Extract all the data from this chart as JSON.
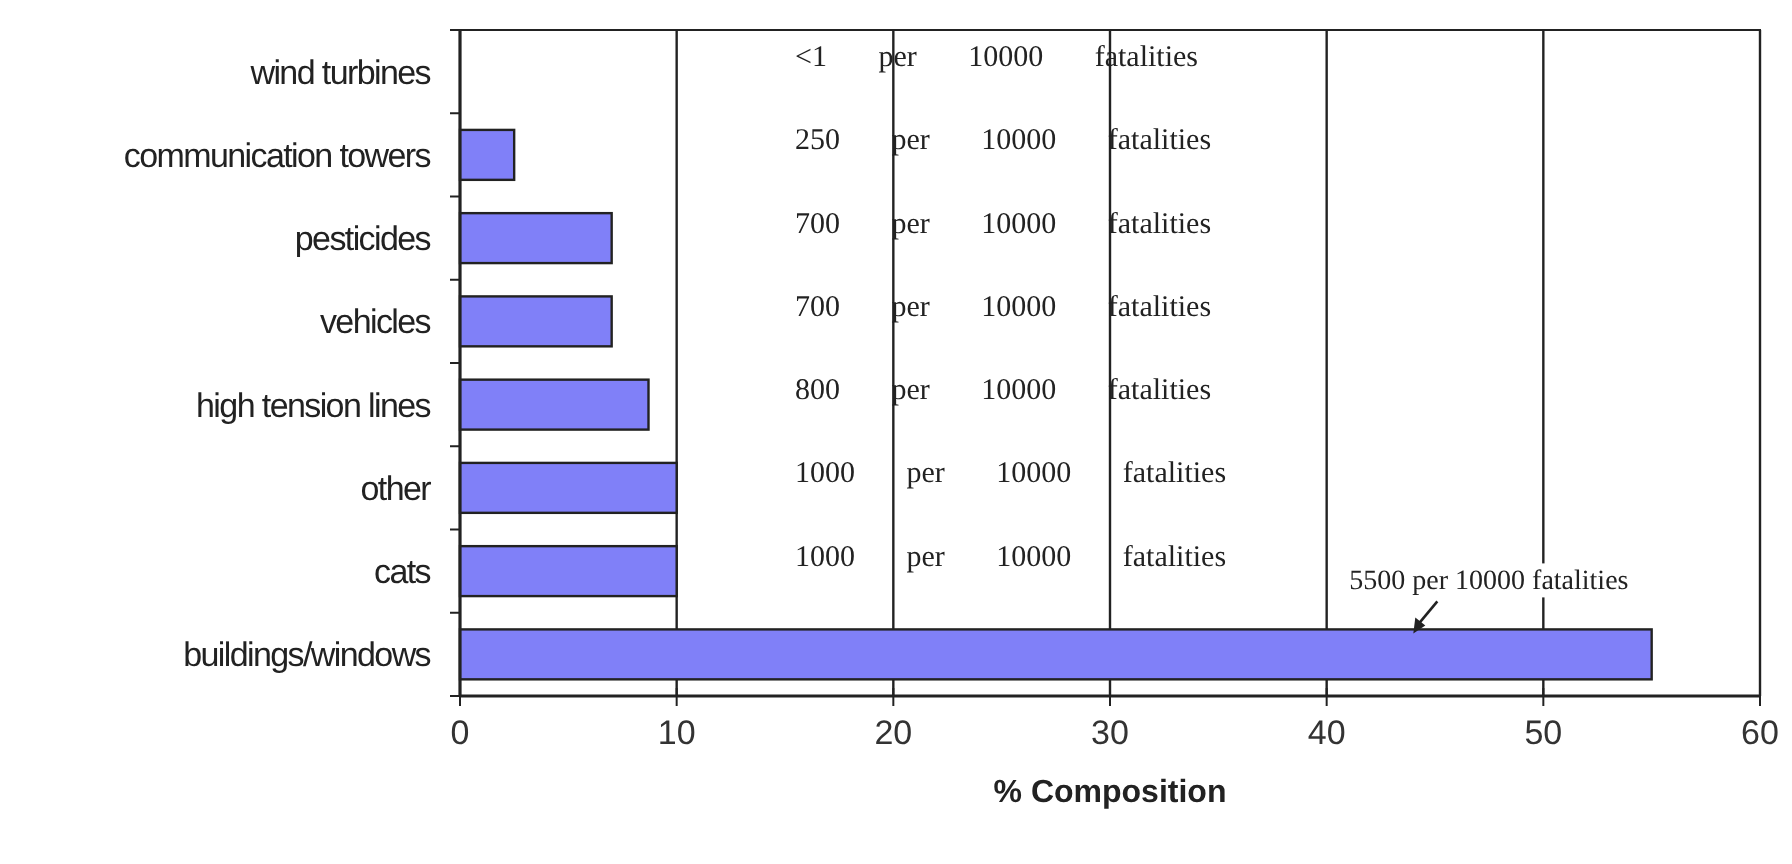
{
  "chart_data": {
    "type": "bar",
    "orientation": "horizontal",
    "xlabel": "% Composition",
    "categories": [
      "wind turbines",
      "communication towers",
      "pesticides",
      "vehicles",
      "high tension lines",
      "other",
      "cats",
      "buildings/windows"
    ],
    "values": [
      0,
      2.5,
      7,
      7,
      8.7,
      10,
      10,
      55
    ],
    "color": "#8080f8",
    "xlim": [
      0,
      60
    ],
    "xticks": [
      0,
      10,
      20,
      30,
      40,
      50,
      60
    ],
    "grid": "x",
    "annotations": [
      "<1 per 10000 fatalities",
      "250 per 10000 fatalities",
      "700 per 10000 fatalities",
      "700 per 10000 fatalities",
      "800 per 10000 fatalities",
      "1000 per 10000 fatalities",
      "1000 per 10000 fatalities",
      "5500 per 10000 fatalities"
    ]
  }
}
